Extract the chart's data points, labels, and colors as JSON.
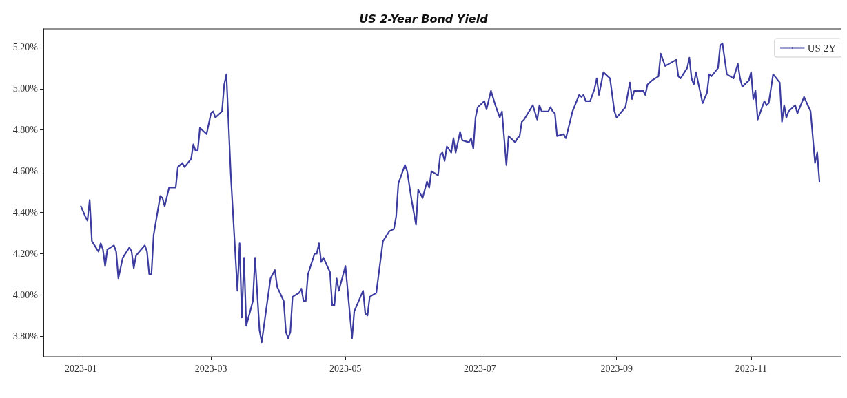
{
  "chart_data": {
    "type": "line",
    "title": "US 2-Year Bond Yield",
    "xlim": [
      "2022-12-15",
      "2023-12-12"
    ],
    "xticks": [
      "2023-01",
      "2023-03",
      "2023-05",
      "2023-07",
      "2023-09",
      "2023-11"
    ],
    "ylim": [
      3.7,
      5.29
    ],
    "yticks": [
      {
        "value": 3.8,
        "label": "3.80%"
      },
      {
        "value": 4.0,
        "label": "4.00%"
      },
      {
        "value": 4.2,
        "label": "4.20%"
      },
      {
        "value": 4.4,
        "label": "4.40%"
      },
      {
        "value": 4.6,
        "label": "4.60%"
      },
      {
        "value": 4.8,
        "label": "4.80%"
      },
      {
        "value": 5.0,
        "label": "5.00%"
      },
      {
        "value": 5.2,
        "label": "5.20%"
      }
    ],
    "grid": false,
    "legend": "top right",
    "marker": "none",
    "line_style": "solid",
    "series": [
      {
        "name": "US 2Y",
        "color": "#3b3ba0",
        "x": [
          "2023-01-01",
          "2023-01-03",
          "2023-01-04",
          "2023-01-05",
          "2023-01-06",
          "2023-01-09",
          "2023-01-10",
          "2023-01-11",
          "2023-01-12",
          "2023-01-13",
          "2023-01-16",
          "2023-01-17",
          "2023-01-18",
          "2023-01-20",
          "2023-01-23",
          "2023-01-24",
          "2023-01-25",
          "2023-01-26",
          "2023-01-30",
          "2023-01-31",
          "2023-02-01",
          "2023-02-02",
          "2023-02-03",
          "2023-02-06",
          "2023-02-07",
          "2023-02-08",
          "2023-02-10",
          "2023-02-13",
          "2023-02-14",
          "2023-02-16",
          "2023-02-17",
          "2023-02-20",
          "2023-02-21",
          "2023-02-22",
          "2023-02-23",
          "2023-02-24",
          "2023-02-27",
          "2023-03-01",
          "2023-03-02",
          "2023-03-03",
          "2023-03-06",
          "2023-03-07",
          "2023-03-08",
          "2023-03-10",
          "2023-03-13",
          "2023-03-14",
          "2023-03-15",
          "2023-03-16",
          "2023-03-17",
          "2023-03-20",
          "2023-03-21",
          "2023-03-23",
          "2023-03-24",
          "2023-03-28",
          "2023-03-30",
          "2023-03-31",
          "2023-04-03",
          "2023-04-04",
          "2023-04-05",
          "2023-04-06",
          "2023-04-07",
          "2023-04-10",
          "2023-04-11",
          "2023-04-12",
          "2023-04-13",
          "2023-04-14",
          "2023-04-17",
          "2023-04-18",
          "2023-04-19",
          "2023-04-20",
          "2023-04-21",
          "2023-04-24",
          "2023-04-25",
          "2023-04-26",
          "2023-04-27",
          "2023-04-28",
          "2023-05-01",
          "2023-05-04",
          "2023-05-05",
          "2023-05-09",
          "2023-05-10",
          "2023-05-11",
          "2023-05-12",
          "2023-05-15",
          "2023-05-18",
          "2023-05-21",
          "2023-05-23",
          "2023-05-24",
          "2023-05-25",
          "2023-05-28",
          "2023-05-29",
          "2023-05-31",
          "2023-06-02",
          "2023-06-03",
          "2023-06-05",
          "2023-06-07",
          "2023-06-08",
          "2023-06-09",
          "2023-06-12",
          "2023-06-13",
          "2023-06-14",
          "2023-06-15",
          "2023-06-16",
          "2023-06-18",
          "2023-06-19",
          "2023-06-20",
          "2023-06-22",
          "2023-06-23",
          "2023-06-26",
          "2023-06-27",
          "2023-06-28",
          "2023-06-29",
          "2023-06-30",
          "2023-07-03",
          "2023-07-04",
          "2023-07-06",
          "2023-07-08",
          "2023-07-10",
          "2023-07-11",
          "2023-07-13",
          "2023-07-14",
          "2023-07-17",
          "2023-07-18",
          "2023-07-19",
          "2023-07-20",
          "2023-07-21",
          "2023-07-25",
          "2023-07-27",
          "2023-07-28",
          "2023-07-29",
          "2023-08-01",
          "2023-08-02",
          "2023-08-03",
          "2023-08-04",
          "2023-08-05",
          "2023-08-08",
          "2023-08-09",
          "2023-08-12",
          "2023-08-15",
          "2023-08-16",
          "2023-08-17",
          "2023-08-18",
          "2023-08-20",
          "2023-08-22",
          "2023-08-23",
          "2023-08-24",
          "2023-08-26",
          "2023-08-29",
          "2023-08-31",
          "2023-09-01",
          "2023-09-05",
          "2023-09-07",
          "2023-09-08",
          "2023-09-09",
          "2023-09-13",
          "2023-09-14",
          "2023-09-15",
          "2023-09-17",
          "2023-09-20",
          "2023-09-21",
          "2023-09-23",
          "2023-09-28",
          "2023-09-29",
          "2023-09-30",
          "2023-10-03",
          "2023-10-04",
          "2023-10-05",
          "2023-10-06",
          "2023-10-07",
          "2023-10-10",
          "2023-10-12",
          "2023-10-13",
          "2023-10-14",
          "2023-10-17",
          "2023-10-18",
          "2023-10-19",
          "2023-10-21",
          "2023-10-24",
          "2023-10-26",
          "2023-10-27",
          "2023-10-28",
          "2023-10-31",
          "2023-11-01",
          "2023-11-02",
          "2023-11-03",
          "2023-11-04",
          "2023-11-07",
          "2023-11-08",
          "2023-11-09",
          "2023-11-11",
          "2023-11-14",
          "2023-11-15",
          "2023-11-16",
          "2023-11-17",
          "2023-11-18",
          "2023-11-21",
          "2023-11-22",
          "2023-11-25",
          "2023-11-28",
          "2023-11-30",
          "2023-12-01",
          "2023-12-02"
        ],
        "values": [
          4.43,
          4.38,
          4.36,
          4.46,
          4.26,
          4.21,
          4.25,
          4.22,
          4.14,
          4.22,
          4.24,
          4.21,
          4.08,
          4.18,
          4.23,
          4.21,
          4.13,
          4.19,
          4.24,
          4.21,
          4.1,
          4.1,
          4.29,
          4.48,
          4.47,
          4.43,
          4.52,
          4.52,
          4.62,
          4.64,
          4.62,
          4.66,
          4.73,
          4.7,
          4.7,
          4.81,
          4.78,
          4.88,
          4.89,
          4.86,
          4.89,
          5.02,
          5.07,
          4.58,
          4.02,
          4.25,
          3.89,
          4.18,
          3.85,
          3.97,
          4.18,
          3.83,
          3.77,
          4.08,
          4.12,
          4.04,
          3.97,
          3.82,
          3.79,
          3.82,
          3.99,
          4.01,
          4.03,
          3.97,
          3.97,
          4.1,
          4.2,
          4.2,
          4.25,
          4.16,
          4.18,
          4.11,
          3.95,
          3.95,
          4.08,
          4.02,
          4.14,
          3.79,
          3.92,
          4.02,
          3.91,
          3.9,
          3.99,
          4.01,
          4.26,
          4.31,
          4.32,
          4.38,
          4.54,
          4.63,
          4.6,
          4.46,
          4.34,
          4.51,
          4.47,
          4.55,
          4.52,
          4.6,
          4.58,
          4.68,
          4.69,
          4.65,
          4.72,
          4.69,
          4.76,
          4.69,
          4.79,
          4.75,
          4.74,
          4.76,
          4.71,
          4.86,
          4.91,
          4.94,
          4.9,
          4.99,
          4.92,
          4.86,
          4.89,
          4.63,
          4.77,
          4.74,
          4.76,
          4.77,
          4.84,
          4.85,
          4.92,
          4.85,
          4.92,
          4.89,
          4.89,
          4.91,
          4.89,
          4.88,
          4.77,
          4.78,
          4.76,
          4.89,
          4.97,
          4.96,
          4.97,
          4.94,
          4.94,
          5.0,
          5.05,
          4.97,
          5.08,
          5.05,
          4.89,
          4.86,
          4.91,
          5.03,
          4.95,
          4.99,
          4.99,
          4.97,
          5.02,
          5.04,
          5.06,
          5.17,
          5.11,
          5.14,
          5.06,
          5.05,
          5.1,
          5.15,
          5.05,
          5.02,
          5.08,
          4.93,
          4.98,
          5.07,
          5.06,
          5.1,
          5.21,
          5.22,
          5.07,
          5.05,
          5.12,
          5.05,
          5.01,
          5.04,
          5.08,
          4.95,
          4.99,
          4.85,
          4.94,
          4.92,
          4.93,
          5.07,
          5.03,
          4.84,
          4.92,
          4.86,
          4.89,
          4.92,
          4.88,
          4.96,
          4.89,
          4.64,
          4.69,
          4.55
        ]
      }
    ]
  }
}
